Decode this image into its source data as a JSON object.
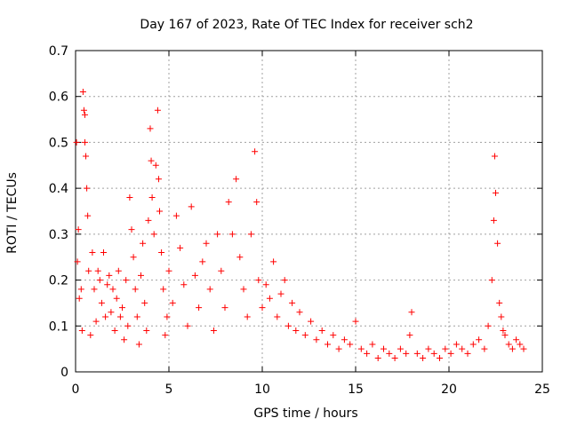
{
  "chart_data": {
    "type": "scatter",
    "title": "Day 167 of 2023, Rate Of TEC Index for receiver sch2",
    "xlabel": "GPS time / hours",
    "ylabel": "ROTI / TECUs",
    "xlim": [
      0,
      25
    ],
    "ylim": [
      0,
      0.7
    ],
    "xticks": [
      0,
      5,
      10,
      15,
      20,
      25
    ],
    "yticks": [
      0,
      0.1,
      0.2,
      0.3,
      0.4,
      0.5,
      0.6,
      0.7
    ],
    "xtick_labels": [
      "0",
      "5",
      "10",
      "15",
      "20",
      "25"
    ],
    "ytick_labels": [
      "0",
      "0.1",
      "0.2",
      "0.3",
      "0.4",
      "0.5",
      "0.6",
      "0.7"
    ],
    "grid": true,
    "marker": "+",
    "color": "#ff0000",
    "series": [
      {
        "x": [
          0.05,
          0.1,
          0.15,
          0.2,
          0.3,
          0.35,
          0.4,
          0.45,
          0.5,
          0.5,
          0.55,
          0.6,
          0.65,
          0.7,
          0.8,
          0.9,
          1.0,
          1.1,
          1.2,
          1.3,
          1.4,
          1.5,
          1.6,
          1.7,
          1.8,
          1.9,
          2.0,
          2.1,
          2.2,
          2.3,
          2.4,
          2.5,
          2.6,
          2.7,
          2.8,
          2.9,
          3.0,
          3.1,
          3.2,
          3.3,
          3.4,
          3.5,
          3.6,
          3.7,
          3.8,
          3.9,
          4.0,
          4.05,
          4.1,
          4.2,
          4.3,
          4.4,
          4.45,
          4.5,
          4.6,
          4.7,
          4.8,
          4.9,
          5.0,
          5.2,
          5.4,
          5.6,
          5.8,
          6.0,
          6.2,
          6.4,
          6.6,
          6.8,
          7.0,
          7.2,
          7.4,
          7.6,
          7.8,
          8.0,
          8.2,
          8.4,
          8.6,
          8.8,
          9.0,
          9.2,
          9.4,
          9.6,
          9.7,
          9.8,
          10.0,
          10.2,
          10.4,
          10.6,
          10.8,
          11.0,
          11.2,
          11.4,
          11.6,
          11.8,
          12.0,
          12.3,
          12.6,
          12.9,
          13.2,
          13.5,
          13.8,
          14.1,
          14.4,
          14.7,
          15.0,
          15.3,
          15.6,
          15.9,
          16.2,
          16.5,
          16.8,
          17.1,
          17.4,
          17.7,
          17.9,
          18.0,
          18.3,
          18.6,
          18.9,
          19.2,
          19.5,
          19.8,
          20.1,
          20.4,
          20.7,
          21.0,
          21.3,
          21.6,
          21.9,
          22.1,
          22.3,
          22.4,
          22.45,
          22.5,
          22.6,
          22.7,
          22.8,
          22.9,
          23.0,
          23.2,
          23.4,
          23.6,
          23.8,
          24.0
        ],
        "y": [
          0.5,
          0.24,
          0.31,
          0.16,
          0.18,
          0.09,
          0.61,
          0.57,
          0.56,
          0.5,
          0.47,
          0.4,
          0.34,
          0.22,
          0.08,
          0.26,
          0.18,
          0.11,
          0.22,
          0.2,
          0.15,
          0.26,
          0.12,
          0.19,
          0.21,
          0.13,
          0.18,
          0.09,
          0.16,
          0.22,
          0.12,
          0.14,
          0.07,
          0.2,
          0.1,
          0.38,
          0.31,
          0.25,
          0.18,
          0.12,
          0.06,
          0.21,
          0.28,
          0.15,
          0.09,
          0.33,
          0.53,
          0.46,
          0.38,
          0.3,
          0.45,
          0.57,
          0.42,
          0.35,
          0.26,
          0.18,
          0.08,
          0.12,
          0.22,
          0.15,
          0.34,
          0.27,
          0.19,
          0.1,
          0.36,
          0.21,
          0.14,
          0.24,
          0.28,
          0.18,
          0.09,
          0.3,
          0.22,
          0.14,
          0.37,
          0.3,
          0.42,
          0.25,
          0.18,
          0.12,
          0.3,
          0.48,
          0.37,
          0.2,
          0.14,
          0.19,
          0.16,
          0.24,
          0.12,
          0.17,
          0.2,
          0.1,
          0.15,
          0.09,
          0.13,
          0.08,
          0.11,
          0.07,
          0.09,
          0.06,
          0.08,
          0.05,
          0.07,
          0.06,
          0.11,
          0.05,
          0.04,
          0.06,
          0.03,
          0.05,
          0.04,
          0.03,
          0.05,
          0.04,
          0.08,
          0.13,
          0.04,
          0.03,
          0.05,
          0.04,
          0.03,
          0.05,
          0.04,
          0.06,
          0.05,
          0.04,
          0.06,
          0.07,
          0.05,
          0.1,
          0.2,
          0.33,
          0.47,
          0.39,
          0.28,
          0.15,
          0.12,
          0.09,
          0.08,
          0.06,
          0.05,
          0.07,
          0.06,
          0.05
        ]
      }
    ]
  }
}
